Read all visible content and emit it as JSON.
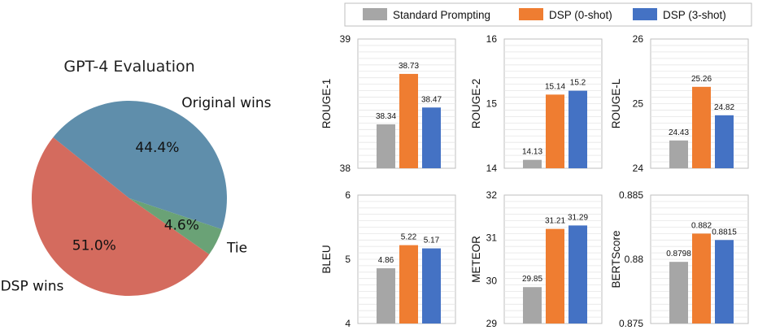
{
  "chart_data": [
    {
      "type": "pie",
      "title": "GPT-4 Evaluation",
      "slices": [
        {
          "label": "DSP wins",
          "value": 51.0,
          "pct_label": "51.0%",
          "color": "#d46b5e"
        },
        {
          "label": "Tie",
          "value": 4.6,
          "pct_label": "4.6%",
          "color": "#6aa276"
        },
        {
          "label": "Original wins",
          "value": 44.4,
          "pct_label": "44.4%",
          "color": "#5f8eab"
        }
      ]
    },
    {
      "type": "bar",
      "legend": [
        {
          "name": "Standard Prompting",
          "color": "#a6a6a6"
        },
        {
          "name": "DSP (0-shot)",
          "color": "#ef7d31"
        },
        {
          "name": "DSP (3-shot)",
          "color": "#4472c4"
        }
      ],
      "legend_position": "top",
      "grid": true,
      "panels": [
        {
          "ylabel": "ROUGE-1",
          "ylim": [
            38,
            39
          ],
          "yticks": [
            "38",
            "39"
          ],
          "values": [
            38.34,
            38.73,
            38.47
          ],
          "value_labels": [
            "38.34",
            "38.73",
            "38.47"
          ]
        },
        {
          "ylabel": "ROUGE-2",
          "ylim": [
            14,
            16
          ],
          "yticks": [
            "14",
            "15",
            "16"
          ],
          "values": [
            14.13,
            15.14,
            15.2
          ],
          "value_labels": [
            "14.13",
            "15.14",
            "15.2"
          ]
        },
        {
          "ylabel": "ROUGE-L",
          "ylim": [
            24,
            26
          ],
          "yticks": [
            "24",
            "25",
            "26"
          ],
          "values": [
            24.43,
            25.26,
            24.82
          ],
          "value_labels": [
            "24.43",
            "25.26",
            "24.82"
          ]
        },
        {
          "ylabel": "BLEU",
          "ylim": [
            4,
            6
          ],
          "yticks": [
            "4",
            "5",
            "6"
          ],
          "values": [
            4.86,
            5.22,
            5.17
          ],
          "value_labels": [
            "4.86",
            "5.22",
            "5.17"
          ]
        },
        {
          "ylabel": "METEOR",
          "ylim": [
            29,
            32
          ],
          "yticks": [
            "29",
            "30",
            "31",
            "32"
          ],
          "values": [
            29.85,
            31.21,
            31.29
          ],
          "value_labels": [
            "29.85",
            "31.21",
            "31.29"
          ]
        },
        {
          "ylabel": "BERTScore",
          "ylim": [
            0.875,
            0.885
          ],
          "yticks": [
            "0.875",
            "0.88",
            "0.885"
          ],
          "values": [
            0.8798,
            0.882,
            0.8815
          ],
          "value_labels": [
            "0.8798",
            "0.882",
            "0.8815"
          ]
        }
      ]
    }
  ]
}
